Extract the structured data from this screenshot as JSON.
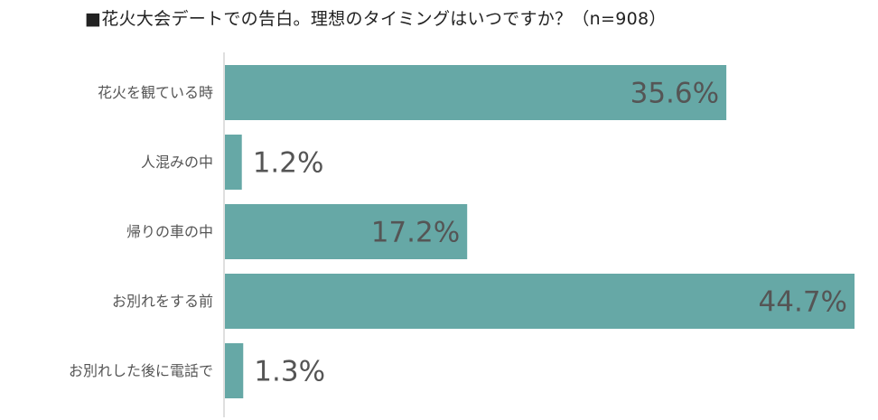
{
  "chart_data": {
    "type": "bar",
    "orientation": "horizontal",
    "title": "■花火大会デートでの告白。理想のタイミングはいつですか？（n=908）",
    "categories": [
      "花火を観ている時",
      "人混みの中",
      "帰りの車の中",
      "お別れをする前",
      "お別れした後に電話で"
    ],
    "values": [
      35.6,
      1.2,
      17.2,
      44.7,
      1.3
    ],
    "value_labels": [
      "35.6%",
      "1.2%",
      "17.2%",
      "44.7%",
      "1.3%"
    ],
    "unit": "%",
    "bar_color": "#66a8a6",
    "grid": false,
    "legend": "none"
  }
}
